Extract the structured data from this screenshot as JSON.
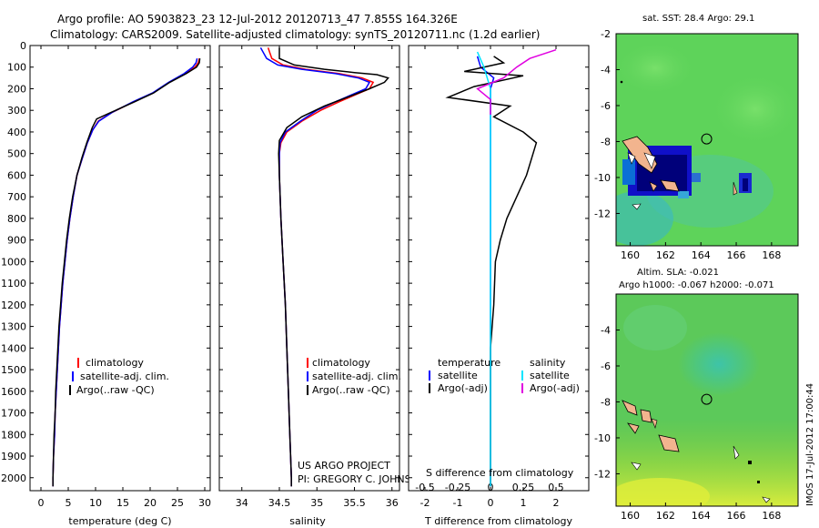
{
  "header": {
    "line1": "Argo profile: AO 5903823_23 12-Jul-2012 20120713_47 7.855S 164.326E",
    "line2": "Climatology: CARS2009. Satellite-adjusted climatology: synTS_20120711.nc (1.2d earlier)"
  },
  "colors": {
    "climatology": "#ff0000",
    "satellite": "#0000ff",
    "argo": "#000000",
    "sat_salinity": "#00e5ff",
    "argo_salinity": "#e000e0"
  },
  "chart_data": [
    {
      "type": "line",
      "name": "temperature-profile",
      "xlabel": "temperature (deg C)",
      "ylabel": "",
      "xlim": [
        -2,
        31
      ],
      "ylim": [
        2060,
        0
      ],
      "y_inverted": true,
      "xticks": [
        0,
        5,
        10,
        15,
        20,
        25,
        30
      ],
      "yticks": [
        0,
        100,
        200,
        300,
        400,
        500,
        600,
        700,
        800,
        900,
        1000,
        1100,
        1200,
        1300,
        1400,
        1500,
        1600,
        1700,
        1800,
        1900,
        2000
      ],
      "legend": [
        "climatology",
        "satellite-adj. clim.",
        "Argo(..raw -QC)"
      ],
      "legend_placement": "lower-center",
      "series": [
        {
          "name": "climatology",
          "color": "#ff0000",
          "points": [
            [
              29.0,
              60
            ],
            [
              28.8,
              80
            ],
            [
              28.2,
              100
            ],
            [
              26.5,
              130
            ],
            [
              23.5,
              170
            ],
            [
              20.5,
              220
            ],
            [
              17.0,
              260
            ],
            [
              13.0,
              310
            ],
            [
              10.5,
              350
            ],
            [
              9.5,
              390
            ],
            [
              8.5,
              450
            ],
            [
              7.6,
              520
            ],
            [
              6.6,
              600
            ],
            [
              5.9,
              700
            ],
            [
              5.3,
              800
            ],
            [
              4.8,
              900
            ],
            [
              4.4,
              1000
            ],
            [
              4.0,
              1100
            ],
            [
              3.7,
              1200
            ],
            [
              3.4,
              1300
            ],
            [
              3.2,
              1400
            ],
            [
              3.0,
              1500
            ],
            [
              2.8,
              1600
            ],
            [
              2.6,
              1700
            ],
            [
              2.5,
              1800
            ],
            [
              2.3,
              1900
            ],
            [
              2.2,
              2000
            ],
            [
              2.2,
              2040
            ]
          ]
        },
        {
          "name": "satellite-adj. clim.",
          "color": "#0000ff",
          "points": [
            [
              28.6,
              60
            ],
            [
              28.4,
              80
            ],
            [
              27.8,
              100
            ],
            [
              26.2,
              130
            ],
            [
              23.4,
              170
            ],
            [
              20.4,
              220
            ],
            [
              16.9,
              260
            ],
            [
              13.0,
              310
            ],
            [
              10.6,
              350
            ],
            [
              9.5,
              390
            ],
            [
              8.5,
              450
            ],
            [
              7.6,
              520
            ],
            [
              6.6,
              600
            ],
            [
              5.9,
              700
            ],
            [
              5.3,
              800
            ],
            [
              4.8,
              900
            ],
            [
              4.4,
              1000
            ],
            [
              4.0,
              1100
            ],
            [
              3.7,
              1200
            ],
            [
              3.4,
              1300
            ],
            [
              3.2,
              1400
            ],
            [
              3.0,
              1500
            ],
            [
              2.8,
              1600
            ],
            [
              2.6,
              1700
            ],
            [
              2.5,
              1800
            ],
            [
              2.3,
              1900
            ],
            [
              2.2,
              2000
            ],
            [
              2.2,
              2040
            ]
          ]
        },
        {
          "name": "Argo(..raw -QC)",
          "color": "#000000",
          "points": [
            [
              29.1,
              60
            ],
            [
              29.0,
              80
            ],
            [
              28.5,
              100
            ],
            [
              26.6,
              130
            ],
            [
              23.6,
              170
            ],
            [
              20.6,
              220
            ],
            [
              17.2,
              260
            ],
            [
              12.8,
              310
            ],
            [
              10.2,
              340
            ],
            [
              9.4,
              380
            ],
            [
              8.4,
              450
            ],
            [
              7.5,
              520
            ],
            [
              6.6,
              600
            ],
            [
              5.8,
              700
            ],
            [
              5.2,
              800
            ],
            [
              4.7,
              900
            ],
            [
              4.3,
              1000
            ],
            [
              3.9,
              1100
            ],
            [
              3.6,
              1200
            ],
            [
              3.3,
              1300
            ],
            [
              3.1,
              1400
            ],
            [
              2.9,
              1500
            ],
            [
              2.7,
              1600
            ],
            [
              2.6,
              1700
            ],
            [
              2.4,
              1800
            ],
            [
              2.3,
              1900
            ],
            [
              2.2,
              2000
            ],
            [
              2.2,
              2040
            ]
          ]
        }
      ]
    },
    {
      "type": "line",
      "name": "salinity-profile",
      "xlabel": "salinity",
      "ylabel": "",
      "xlim": [
        33.7,
        36.1
      ],
      "ylim": [
        2060,
        0
      ],
      "y_inverted": true,
      "xticks": [
        34,
        34.5,
        35,
        35.5,
        36
      ],
      "legend": [
        "climatology",
        "satellite-adj. clim.",
        "Argo(..raw -QC)"
      ],
      "legend_placement": "lower-center",
      "annotation": [
        "US ARGO PROJECT",
        "PI: GREGORY C. JOHNSON"
      ],
      "series": [
        {
          "name": "climatology",
          "color": "#ff0000",
          "points": [
            [
              34.35,
              10
            ],
            [
              34.4,
              60
            ],
            [
              34.55,
              90
            ],
            [
              34.85,
              110
            ],
            [
              35.3,
              130
            ],
            [
              35.6,
              150
            ],
            [
              35.75,
              170
            ],
            [
              35.7,
              200
            ],
            [
              35.5,
              230
            ],
            [
              35.3,
              260
            ],
            [
              35.05,
              300
            ],
            [
              34.8,
              350
            ],
            [
              34.6,
              400
            ],
            [
              34.52,
              450
            ],
            [
              34.5,
              500
            ],
            [
              34.5,
              600
            ],
            [
              34.52,
              800
            ],
            [
              34.55,
              1000
            ],
            [
              34.58,
              1200
            ],
            [
              34.6,
              1400
            ],
            [
              34.62,
              1600
            ],
            [
              34.64,
              1800
            ],
            [
              34.66,
              2000
            ],
            [
              34.66,
              2040
            ]
          ]
        },
        {
          "name": "satellite-adj. clim.",
          "color": "#0000ff",
          "points": [
            [
              34.25,
              10
            ],
            [
              34.33,
              60
            ],
            [
              34.48,
              90
            ],
            [
              34.8,
              110
            ],
            [
              35.25,
              130
            ],
            [
              35.55,
              150
            ],
            [
              35.7,
              170
            ],
            [
              35.65,
              200
            ],
            [
              35.45,
              230
            ],
            [
              35.25,
              260
            ],
            [
              35.0,
              300
            ],
            [
              34.78,
              350
            ],
            [
              34.58,
              400
            ],
            [
              34.51,
              450
            ],
            [
              34.5,
              500
            ],
            [
              34.5,
              600
            ],
            [
              34.52,
              800
            ],
            [
              34.55,
              1000
            ],
            [
              34.58,
              1200
            ],
            [
              34.6,
              1400
            ],
            [
              34.62,
              1600
            ],
            [
              34.64,
              1800
            ],
            [
              34.66,
              2000
            ],
            [
              34.66,
              2040
            ]
          ]
        },
        {
          "name": "Argo(..raw -QC)",
          "color": "#000000",
          "points": [
            [
              34.5,
              10
            ],
            [
              34.5,
              60
            ],
            [
              34.7,
              90
            ],
            [
              35.1,
              110
            ],
            [
              35.5,
              125
            ],
            [
              35.8,
              135
            ],
            [
              35.95,
              150
            ],
            [
              35.9,
              170
            ],
            [
              35.7,
              200
            ],
            [
              35.4,
              240
            ],
            [
              35.1,
              280
            ],
            [
              34.8,
              330
            ],
            [
              34.6,
              380
            ],
            [
              34.5,
              440
            ],
            [
              34.49,
              500
            ],
            [
              34.5,
              600
            ],
            [
              34.52,
              800
            ],
            [
              34.55,
              1000
            ],
            [
              34.58,
              1200
            ],
            [
              34.6,
              1400
            ],
            [
              34.62,
              1600
            ],
            [
              34.64,
              1800
            ],
            [
              34.66,
              2000
            ],
            [
              34.66,
              2040
            ]
          ]
        }
      ]
    },
    {
      "type": "line",
      "name": "difference-profile",
      "xlabel": "T difference from climatology",
      "x2label": "S difference from climatology",
      "xlim": [
        -2.5,
        3.0
      ],
      "x2lim": [
        -0.625,
        0.75
      ],
      "ylim": [
        2060,
        0
      ],
      "y_inverted": true,
      "xticks": [
        -2,
        -1,
        0,
        1,
        2
      ],
      "x2ticks": [
        "-0.5",
        "-0.25",
        "0",
        "0.25",
        "0.5"
      ],
      "x2tick_values": [
        -0.5,
        -0.25,
        0,
        0.25,
        0.5
      ],
      "legend_temperature_title": "temperature",
      "legend_salinity_title": "salinity",
      "legend": [
        "satellite",
        "Argo(-adj)",
        "satellite",
        "Argo(-adj)"
      ],
      "series": [
        {
          "name": "temperature satellite",
          "color": "#0000ff",
          "points": [
            [
              -0.4,
              50
            ],
            [
              -0.3,
              100
            ],
            [
              0.1,
              150
            ],
            [
              0.0,
              200
            ],
            [
              0.0,
              400
            ],
            [
              0.0,
              2040
            ]
          ]
        },
        {
          "name": "temperature Argo(-adj)",
          "color": "#000000",
          "points": [
            [
              0.1,
              50
            ],
            [
              0.4,
              80
            ],
            [
              -0.8,
              120
            ],
            [
              1.0,
              140
            ],
            [
              -0.5,
              190
            ],
            [
              -1.3,
              240
            ],
            [
              0.6,
              280
            ],
            [
              0.1,
              330
            ],
            [
              1.0,
              400
            ],
            [
              1.4,
              450
            ],
            [
              1.3,
              500
            ],
            [
              1.1,
              600
            ],
            [
              0.8,
              700
            ],
            [
              0.5,
              800
            ],
            [
              0.3,
              900
            ],
            [
              0.15,
              1000
            ],
            [
              0.1,
              1200
            ],
            [
              0.05,
              1300
            ],
            [
              0.0,
              1400
            ],
            [
              0.0,
              2040
            ]
          ]
        },
        {
          "name": "salinity satellite",
          "color": "#00e5ff",
          "points": [
            [
              -0.1,
              30
            ],
            [
              -0.05,
              100
            ],
            [
              0.0,
              200
            ],
            [
              0.0,
              2040
            ]
          ]
        },
        {
          "name": "salinity Argo(-adj)",
          "color": "#e000e0",
          "points": [
            [
              0.5,
              20
            ],
            [
              0.3,
              60
            ],
            [
              0.2,
              100
            ],
            [
              0.1,
              150
            ],
            [
              -0.1,
              200
            ],
            [
              0.0,
              250
            ],
            [
              0.0,
              300
            ],
            [
              0.0,
              320
            ]
          ]
        }
      ]
    },
    {
      "type": "heatmap",
      "name": "sst-map",
      "title": "sat. SST: 28.4  Argo: 29.1",
      "xlim": [
        159.2,
        169.5
      ],
      "ylim": [
        -13.8,
        -2
      ],
      "xticks": [
        160,
        162,
        164,
        166,
        168
      ],
      "yticks": [
        -2,
        -4,
        -6,
        -8,
        -10,
        -12
      ],
      "float_position": [
        164.326,
        -7.855
      ]
    },
    {
      "type": "heatmap",
      "name": "sla-map",
      "title": "Altim. SLA: -0.021",
      "subtitle": "Argo h1000: -0.067  h2000: -0.071",
      "xlim": [
        159.2,
        169.5
      ],
      "ylim": [
        -13.8,
        -2
      ],
      "xticks": [
        160,
        162,
        164,
        166,
        168
      ],
      "yticks": [
        -4,
        -6,
        -8,
        -10,
        -12
      ],
      "float_position": [
        164.326,
        -7.855
      ]
    }
  ],
  "side_label": "IMOS 17-Jul-2012 17:00:44"
}
